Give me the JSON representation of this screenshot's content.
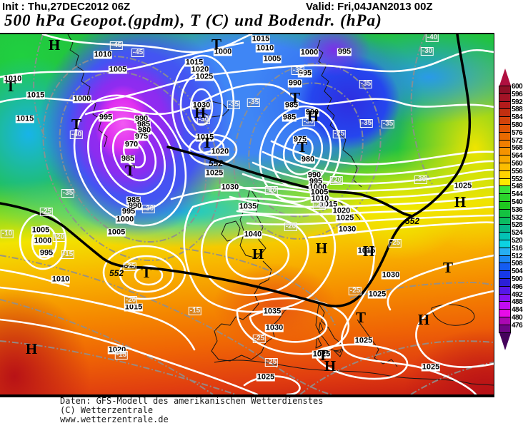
{
  "header": {
    "init": "Init : Thu,27DEC2012 06Z",
    "valid": "Valid: Fri,04JAN2013 00Z",
    "title": "500 hPa Geopot.(gpdm), T (C) und Bodendr. (hPa)"
  },
  "footer": {
    "lines": [
      "Daten: GFS-Modell des amerikanischen Wetterdienstes",
      "(C) Wetterzentrale",
      "www.wetterzentrale.de"
    ]
  },
  "colorbar": {
    "unit": "gpdm",
    "values": [
      600,
      596,
      592,
      588,
      584,
      580,
      576,
      572,
      568,
      564,
      560,
      556,
      552,
      548,
      544,
      540,
      536,
      532,
      528,
      524,
      520,
      516,
      512,
      508,
      504,
      500,
      496,
      492,
      488,
      484,
      480,
      476
    ],
    "colors": [
      "#8f0f26",
      "#a31326",
      "#b31b1b",
      "#c12f10",
      "#d2430b",
      "#e05505",
      "#ea6a00",
      "#f07f00",
      "#f59300",
      "#f9a800",
      "#fcbd00",
      "#ffd400",
      "#ffe900",
      "#3ae23a",
      "#2bd42b",
      "#1fc81f",
      "#14c241",
      "#0bbc62",
      "#06b788",
      "#04c2b4",
      "#0cd2e2",
      "#27aef2",
      "#1b86f5",
      "#145cf2",
      "#1738e8",
      "#2b1fd8",
      "#5517e8",
      "#8512f2",
      "#c20cf2",
      "#e80ce8",
      "#aa08b2",
      "#6e0587"
    ],
    "arrow_top_color": "#b01040",
    "arrow_bottom_color": "#46025c"
  },
  "map": {
    "thick_contour_value": "552",
    "high_letter": "H",
    "low_letter": "T",
    "labels": {
      "pressure": [
        [
          "1010",
          18,
          63
        ],
        [
          "1015",
          50,
          86
        ],
        [
          "1010",
          144,
          29
        ],
        [
          "1005",
          165,
          50
        ],
        [
          "1000",
          115,
          91
        ],
        [
          "1015",
          35,
          119
        ],
        [
          "995",
          148,
          117
        ],
        [
          "990",
          198,
          119
        ],
        [
          "985",
          201,
          127
        ],
        [
          "980",
          202,
          135
        ],
        [
          "975",
          198,
          144
        ],
        [
          "970",
          184,
          155
        ],
        [
          "985",
          179,
          175
        ],
        [
          "1000",
          312,
          25
        ],
        [
          "1015",
          365,
          7
        ],
        [
          "1010",
          371,
          20
        ],
        [
          "1005",
          381,
          35
        ],
        [
          "1000",
          433,
          26
        ],
        [
          "995",
          482,
          25
        ],
        [
          "995",
          427,
          55
        ],
        [
          "990",
          413,
          69
        ],
        [
          "1015",
          272,
          40
        ],
        [
          "1020",
          280,
          50
        ],
        [
          "1025",
          286,
          60
        ],
        [
          "1030",
          282,
          100
        ],
        [
          "985",
          408,
          100
        ],
        [
          "985",
          405,
          117
        ],
        [
          "990",
          437,
          110
        ],
        [
          "975",
          420,
          148
        ],
        [
          "980",
          431,
          176
        ],
        [
          "1015",
          287,
          145
        ],
        [
          "1020",
          308,
          165
        ],
        [
          "985",
          187,
          233
        ],
        [
          "990",
          189,
          241
        ],
        [
          "995",
          180,
          249
        ],
        [
          "1000",
          175,
          260
        ],
        [
          "1005",
          163,
          278
        ],
        [
          "1005",
          57,
          275
        ],
        [
          "1000",
          60,
          290
        ],
        [
          "995",
          65,
          307
        ],
        [
          "1010",
          85,
          344
        ],
        [
          "1025",
          300,
          195
        ],
        [
          "1030",
          322,
          215
        ],
        [
          "1035",
          347,
          242
        ],
        [
          "1040",
          354,
          281
        ],
        [
          "990",
          440,
          198
        ],
        [
          "995",
          442,
          207
        ],
        [
          "1000",
          445,
          215
        ],
        [
          "1005",
          447,
          222
        ],
        [
          "1010",
          448,
          231
        ],
        [
          "1015",
          460,
          239
        ],
        [
          "1020",
          478,
          248
        ],
        [
          "1025",
          483,
          258
        ],
        [
          "1030",
          486,
          274
        ],
        [
          "1025",
          648,
          213
        ],
        [
          "1015",
          513,
          304
        ],
        [
          "1030",
          547,
          338
        ],
        [
          "1025",
          528,
          365
        ],
        [
          "1035",
          381,
          389
        ],
        [
          "1030",
          384,
          412
        ],
        [
          "1025",
          509,
          430
        ],
        [
          "1025",
          372,
          481
        ],
        [
          "1025",
          603,
          467
        ],
        [
          "1025",
          450,
          449
        ],
        [
          "1015",
          187,
          383
        ],
        [
          "1020",
          164,
          443
        ]
      ],
      "temp": [
        [
          "-45",
          163,
          16
        ],
        [
          "-45",
          193,
          26
        ],
        [
          "-40",
          107,
          141
        ],
        [
          "-35",
          417,
          51
        ],
        [
          "-30",
          285,
          120
        ],
        [
          "-35",
          327,
          99
        ],
        [
          "-35",
          355,
          96
        ],
        [
          "-30",
          432,
          123
        ],
        [
          "-40",
          605,
          5
        ],
        [
          "-30",
          598,
          24
        ],
        [
          "-35",
          512,
          70
        ],
        [
          "-35",
          513,
          125
        ],
        [
          "-35",
          543,
          126
        ],
        [
          "-35",
          95,
          223
        ],
        [
          "-25",
          65,
          249
        ],
        [
          "-30",
          208,
          245
        ],
        [
          "-10",
          10,
          280
        ],
        [
          "-20",
          83,
          285
        ],
        [
          "-15",
          95,
          309
        ],
        [
          "-25",
          182,
          326
        ],
        [
          "-25",
          475,
          140
        ],
        [
          "-20",
          380,
          219
        ],
        [
          "-20",
          447,
          240
        ],
        [
          "-20",
          407,
          270
        ],
        [
          "-30",
          589,
          204
        ],
        [
          "-25",
          553,
          293
        ],
        [
          "-20",
          183,
          373
        ],
        [
          "-15",
          273,
          388
        ],
        [
          "-15",
          170,
          450
        ],
        [
          "-25",
          497,
          360
        ],
        [
          "-25",
          363,
          427
        ],
        [
          "-25",
          380,
          460
        ],
        [
          "-20",
          471,
          205
        ]
      ],
      "thick": [
        [
          "552",
          163,
          335
        ],
        [
          "552",
          302,
          181
        ],
        [
          "552",
          577,
          262
        ]
      ],
      "high": [
        [
          76,
          15
        ],
        [
          280,
          110
        ],
        [
          438,
          115
        ],
        [
          361,
          308
        ],
        [
          450,
          300
        ],
        [
          516,
          304
        ],
        [
          644,
          235
        ],
        [
          44,
          441
        ],
        [
          593,
          400
        ],
        [
          462,
          465
        ]
      ],
      "low": [
        [
          15,
          73
        ],
        [
          303,
          14
        ],
        [
          107,
          126
        ],
        [
          182,
          191
        ],
        [
          413,
          89
        ],
        [
          423,
          158
        ],
        [
          290,
          152
        ],
        [
          205,
          334
        ],
        [
          627,
          327
        ],
        [
          505,
          397
        ],
        [
          452,
          450
        ]
      ]
    }
  }
}
